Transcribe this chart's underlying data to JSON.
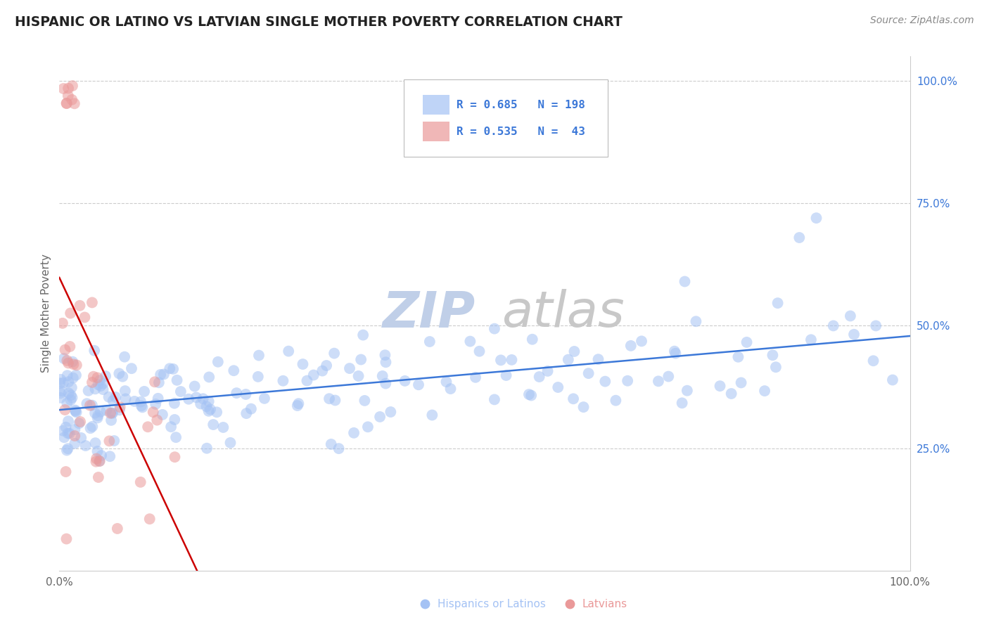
{
  "title": "HISPANIC OR LATINO VS LATVIAN SINGLE MOTHER POVERTY CORRELATION CHART",
  "source": "Source: ZipAtlas.com",
  "ylabel": "Single Mother Poverty",
  "legend1_label": "Hispanics or Latinos",
  "legend2_label": "Latvians",
  "R1": 0.685,
  "N1": 198,
  "R2": 0.535,
  "N2": 43,
  "blue_color": "#a4c2f4",
  "pink_color": "#ea9999",
  "blue_line_color": "#3c78d8",
  "pink_line_color": "#cc0000",
  "ytick_color": "#3c78d8",
  "text_color": "#666666",
  "grid_color": "#cccccc",
  "watermark_zip_color": "#c0cfe8",
  "watermark_atlas_color": "#c8c8c8",
  "legend_r_n_color": "#3c78d8"
}
